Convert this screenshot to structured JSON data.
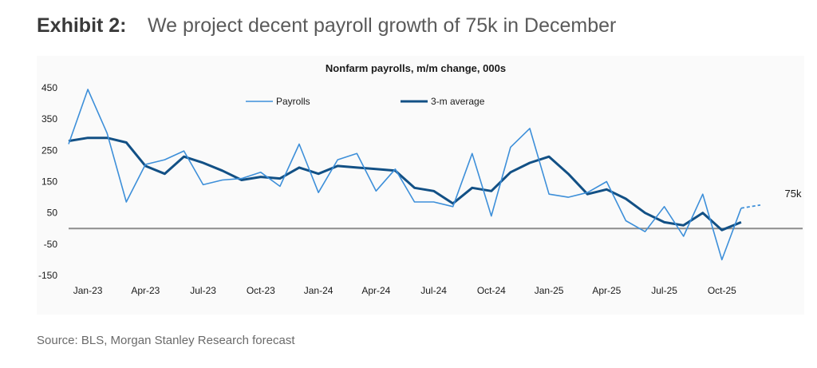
{
  "exhibit": {
    "label": "Exhibit 2:",
    "title": "We project decent payroll growth of 75k in December"
  },
  "source": "Source: BLS, Morgan Stanley Research forecast",
  "colors": {
    "payrolls": "#3d8fd9",
    "average": "#125085",
    "zero_line": "#8c8c8c"
  },
  "chart_data": {
    "type": "line",
    "title": "Nonfarm payrolls, m/m change, 000s",
    "xlabel": "",
    "ylabel": "",
    "ylim": [
      -150,
      450
    ],
    "yticks": [
      450,
      350,
      250,
      150,
      50,
      -50,
      -150
    ],
    "yticks_labels": [
      "450",
      "350",
      "250",
      "150",
      "50",
      "-50",
      "-150"
    ],
    "x_categories": [
      "Dec-22",
      "Jan-23",
      "Feb-23",
      "Mar-23",
      "Apr-23",
      "May-23",
      "Jun-23",
      "Jul-23",
      "Aug-23",
      "Sep-23",
      "Oct-23",
      "Nov-23",
      "Dec-23",
      "Jan-24",
      "Feb-24",
      "Mar-24",
      "Apr-24",
      "May-24",
      "Jun-24",
      "Jul-24",
      "Aug-24",
      "Sep-24",
      "Oct-24",
      "Nov-24",
      "Dec-24",
      "Jan-25",
      "Feb-25",
      "Mar-25",
      "Apr-25",
      "May-25",
      "Jun-25",
      "Jul-25",
      "Aug-25",
      "Sep-25",
      "Oct-25",
      "Nov-25",
      "Dec-25"
    ],
    "xtick_labels": [
      "Jan-23",
      "Apr-23",
      "Jul-23",
      "Oct-23",
      "Jan-24",
      "Apr-24",
      "Jul-24",
      "Oct-24",
      "Jan-25",
      "Apr-25",
      "Jul-25",
      "Oct-25"
    ],
    "xtick_index": [
      1,
      4,
      7,
      10,
      13,
      16,
      19,
      22,
      25,
      28,
      31,
      34
    ],
    "series": [
      {
        "name": "Payrolls",
        "values": [
          270,
          445,
          305,
          85,
          205,
          220,
          248,
          140,
          155,
          160,
          180,
          135,
          270,
          115,
          220,
          240,
          120,
          190,
          85,
          85,
          70,
          240,
          40,
          260,
          320,
          110,
          100,
          115,
          150,
          25,
          -10,
          70,
          -25,
          110,
          -100,
          65,
          null
        ],
        "forecast": {
          "from_index": 35,
          "to_index": 36,
          "from_value": 65,
          "to_value": 75
        }
      },
      {
        "name": "3-m average",
        "values": [
          280,
          290,
          290,
          275,
          200,
          175,
          230,
          210,
          185,
          155,
          165,
          160,
          195,
          175,
          200,
          195,
          190,
          185,
          130,
          120,
          80,
          130,
          120,
          180,
          210,
          230,
          175,
          110,
          125,
          95,
          50,
          20,
          10,
          50,
          -5,
          20,
          null
        ]
      }
    ],
    "annotation": "75k",
    "legend_position": "top"
  }
}
